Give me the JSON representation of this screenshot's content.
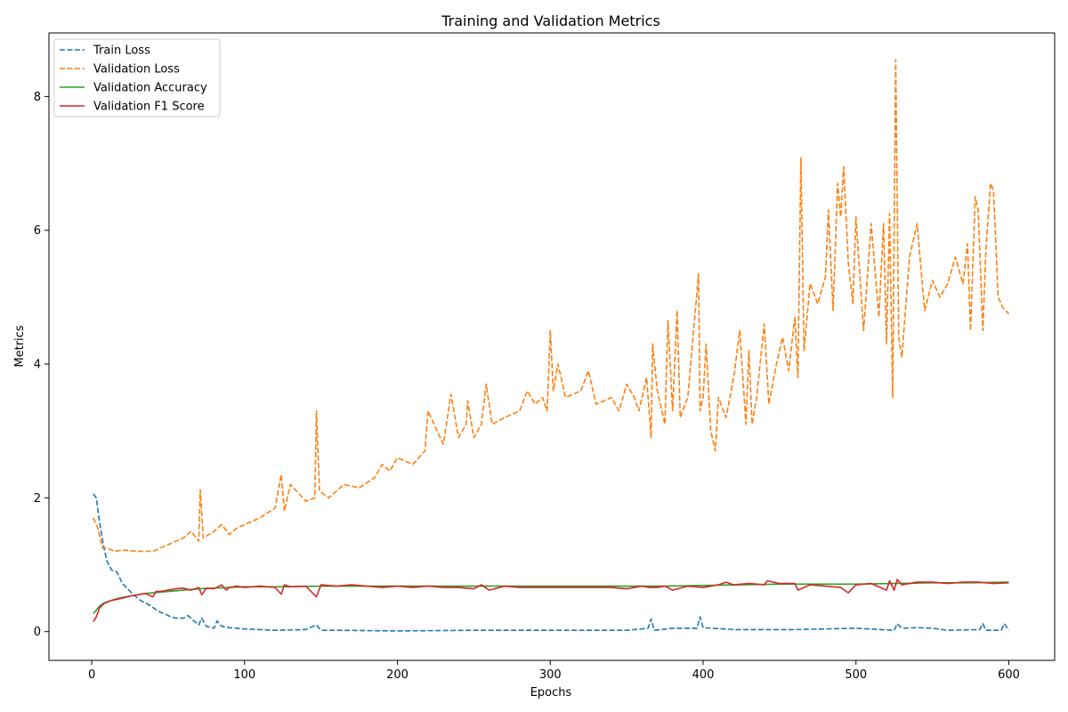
{
  "chart_data": {
    "type": "line",
    "title": "Training and Validation Metrics",
    "xlabel": "Epochs",
    "ylabel": "Metrics",
    "xlim": [
      -28,
      630
    ],
    "ylim": [
      -0.43,
      8.95
    ],
    "xticks": [
      0,
      100,
      200,
      300,
      400,
      500,
      600
    ],
    "xtick_labels": [
      "0",
      "100",
      "200",
      "300",
      "400",
      "500",
      "600"
    ],
    "yticks": [
      0,
      2,
      4,
      6,
      8
    ],
    "ytick_labels": [
      "0",
      "2",
      "4",
      "6",
      "8"
    ],
    "legend_position": "top-left",
    "series": [
      {
        "name": "Train Loss",
        "color": "#1f77b4",
        "style": "dashed",
        "x": [
          1,
          3,
          5,
          8,
          10,
          13,
          16,
          18,
          20,
          23,
          26,
          30,
          33,
          36,
          40,
          44,
          48,
          52,
          55,
          60,
          63,
          66,
          70,
          72,
          75,
          80,
          82,
          85,
          90,
          95,
          100,
          110,
          120,
          140,
          147,
          150,
          160,
          200,
          250,
          300,
          350,
          364,
          366,
          368,
          380,
          396,
          398,
          400,
          420,
          450,
          460,
          500,
          525,
          527,
          530,
          540,
          550,
          560,
          581,
          583,
          585,
          595,
          597,
          600
        ],
        "y": [
          2.06,
          2.0,
          1.65,
          1.25,
          1.05,
          0.92,
          0.9,
          0.82,
          0.72,
          0.65,
          0.58,
          0.5,
          0.45,
          0.42,
          0.36,
          0.3,
          0.26,
          0.22,
          0.2,
          0.2,
          0.24,
          0.18,
          0.1,
          0.2,
          0.08,
          0.05,
          0.16,
          0.08,
          0.06,
          0.05,
          0.04,
          0.03,
          0.02,
          0.03,
          0.1,
          0.02,
          0.02,
          0.01,
          0.02,
          0.02,
          0.02,
          0.05,
          0.19,
          0.02,
          0.05,
          0.05,
          0.22,
          0.06,
          0.03,
          0.03,
          0.03,
          0.05,
          0.02,
          0.12,
          0.05,
          0.06,
          0.05,
          0.02,
          0.03,
          0.12,
          0.02,
          0.02,
          0.12,
          0.02
        ]
      },
      {
        "name": "Validation Loss",
        "color": "#ff7f0e",
        "style": "dashed",
        "x": [
          1,
          4,
          7,
          10,
          15,
          20,
          30,
          40,
          45,
          50,
          55,
          60,
          65,
          70,
          71,
          73,
          80,
          85,
          90,
          95,
          100,
          110,
          120,
          124,
          126,
          130,
          140,
          146,
          147,
          149,
          155,
          165,
          175,
          185,
          190,
          195,
          200,
          210,
          218,
          220,
          230,
          235,
          240,
          245,
          246,
          250,
          255,
          258,
          262,
          270,
          280,
          285,
          290,
          295,
          298,
          300,
          302,
          305,
          310,
          320,
          325,
          330,
          340,
          345,
          350,
          355,
          358,
          363,
          366,
          367,
          370,
          375,
          377,
          380,
          383,
          385,
          390,
          393,
          397,
          398,
          400,
          402,
          405,
          408,
          410,
          415,
          420,
          424,
          428,
          430,
          432,
          435,
          440,
          443,
          448,
          452,
          456,
          460,
          462,
          464,
          466,
          470,
          475,
          480,
          482,
          485,
          488,
          490,
          492,
          495,
          498,
          500,
          505,
          510,
          515,
          518,
          520,
          522,
          524,
          526,
          528,
          530,
          535,
          540,
          545,
          550,
          555,
          560,
          565,
          570,
          573,
          575,
          578,
          580,
          583,
          585,
          588,
          590,
          593,
          596,
          600
        ],
        "y": [
          1.7,
          1.55,
          1.25,
          1.25,
          1.2,
          1.22,
          1.2,
          1.2,
          1.25,
          1.3,
          1.35,
          1.4,
          1.5,
          1.35,
          2.12,
          1.4,
          1.5,
          1.6,
          1.45,
          1.55,
          1.6,
          1.7,
          1.85,
          2.35,
          1.8,
          2.2,
          1.95,
          2.0,
          3.3,
          2.1,
          2.0,
          2.2,
          2.15,
          2.3,
          2.5,
          2.4,
          2.6,
          2.5,
          2.7,
          3.3,
          2.8,
          3.55,
          2.9,
          3.1,
          3.45,
          2.9,
          3.1,
          3.7,
          3.1,
          3.2,
          3.3,
          3.6,
          3.4,
          3.5,
          3.3,
          4.5,
          3.6,
          4.0,
          3.5,
          3.6,
          3.9,
          3.4,
          3.5,
          3.3,
          3.7,
          3.5,
          3.3,
          3.8,
          2.9,
          4.3,
          3.6,
          3.1,
          4.65,
          3.3,
          4.8,
          3.2,
          3.5,
          4.3,
          5.35,
          3.3,
          3.5,
          4.3,
          3.0,
          2.7,
          3.5,
          3.2,
          3.8,
          4.5,
          3.1,
          4.2,
          3.1,
          3.5,
          4.6,
          3.4,
          4.0,
          4.4,
          3.9,
          4.7,
          3.8,
          7.08,
          4.2,
          5.2,
          4.9,
          5.3,
          6.3,
          4.8,
          6.7,
          6.2,
          6.95,
          5.5,
          4.9,
          6.2,
          4.5,
          6.1,
          4.7,
          6.1,
          4.3,
          6.25,
          3.5,
          8.55,
          4.4,
          4.1,
          5.6,
          6.1,
          4.8,
          5.25,
          5.0,
          5.2,
          5.6,
          5.2,
          5.8,
          4.5,
          6.5,
          6.3,
          4.5,
          5.7,
          6.7,
          6.6,
          5.0,
          4.85,
          4.75
        ]
      },
      {
        "name": "Validation Accuracy",
        "color": "#2ca02c",
        "style": "solid",
        "x": [
          1,
          3,
          5,
          8,
          12,
          16,
          20,
          25,
          30,
          35,
          40,
          50,
          60,
          70,
          80,
          90,
          100,
          125,
          150,
          175,
          200,
          225,
          250,
          275,
          300,
          325,
          350,
          375,
          400,
          425,
          450,
          475,
          500,
          525,
          550,
          575,
          600
        ],
        "y": [
          0.27,
          0.32,
          0.38,
          0.43,
          0.46,
          0.49,
          0.51,
          0.53,
          0.55,
          0.57,
          0.58,
          0.6,
          0.62,
          0.64,
          0.65,
          0.66,
          0.67,
          0.67,
          0.68,
          0.68,
          0.68,
          0.68,
          0.68,
          0.68,
          0.68,
          0.68,
          0.68,
          0.68,
          0.69,
          0.7,
          0.71,
          0.71,
          0.71,
          0.72,
          0.73,
          0.73,
          0.74
        ]
      },
      {
        "name": "Validation F1 Score",
        "color": "#d62728",
        "style": "solid",
        "x": [
          1,
          3,
          5,
          8,
          12,
          16,
          20,
          25,
          30,
          35,
          40,
          42,
          45,
          50,
          55,
          60,
          65,
          70,
          72,
          75,
          80,
          85,
          88,
          90,
          95,
          100,
          110,
          120,
          124,
          126,
          130,
          140,
          147,
          150,
          160,
          170,
          180,
          190,
          200,
          210,
          220,
          230,
          240,
          250,
          255,
          260,
          270,
          280,
          290,
          300,
          310,
          320,
          330,
          340,
          350,
          360,
          365,
          370,
          375,
          380,
          390,
          400,
          410,
          415,
          420,
          430,
          440,
          442,
          450,
          460,
          462,
          470,
          480,
          490,
          495,
          500,
          510,
          520,
          522,
          525,
          527,
          530,
          540,
          550,
          560,
          570,
          580,
          590,
          600
        ],
        "y": [
          0.15,
          0.22,
          0.35,
          0.42,
          0.46,
          0.48,
          0.5,
          0.53,
          0.55,
          0.57,
          0.52,
          0.6,
          0.6,
          0.62,
          0.64,
          0.65,
          0.62,
          0.66,
          0.55,
          0.65,
          0.64,
          0.7,
          0.62,
          0.66,
          0.68,
          0.66,
          0.68,
          0.66,
          0.56,
          0.7,
          0.67,
          0.68,
          0.52,
          0.7,
          0.68,
          0.7,
          0.68,
          0.66,
          0.68,
          0.66,
          0.68,
          0.66,
          0.66,
          0.64,
          0.7,
          0.62,
          0.68,
          0.66,
          0.66,
          0.66,
          0.66,
          0.66,
          0.66,
          0.66,
          0.64,
          0.68,
          0.66,
          0.66,
          0.68,
          0.62,
          0.68,
          0.66,
          0.7,
          0.74,
          0.7,
          0.72,
          0.7,
          0.76,
          0.72,
          0.72,
          0.62,
          0.7,
          0.68,
          0.66,
          0.58,
          0.7,
          0.72,
          0.62,
          0.76,
          0.62,
          0.78,
          0.7,
          0.74,
          0.74,
          0.72,
          0.74,
          0.74,
          0.72,
          0.73
        ]
      }
    ]
  }
}
